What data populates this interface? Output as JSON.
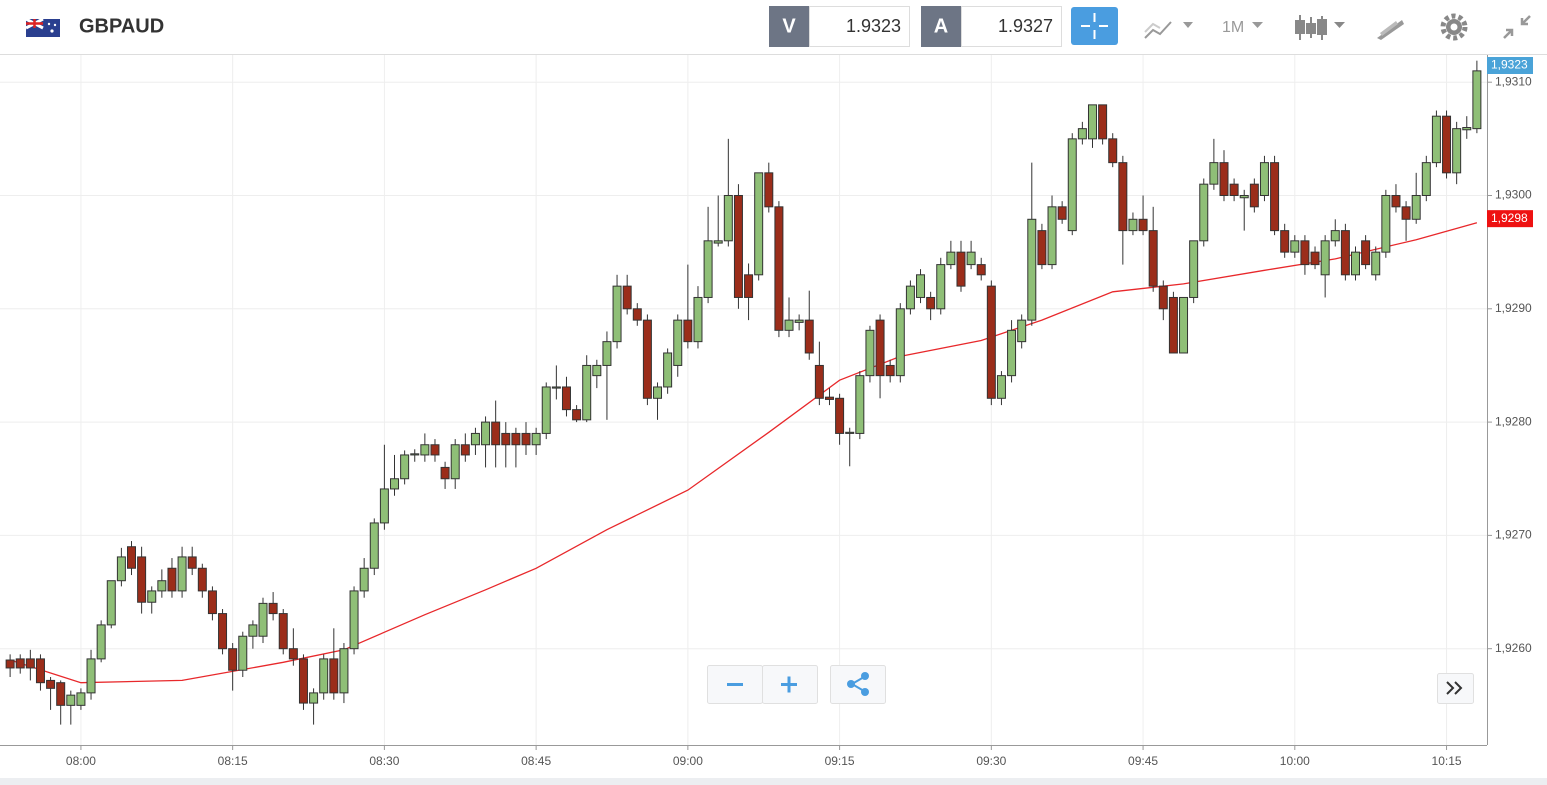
{
  "toolbar": {
    "symbol": "GBPAUD",
    "bid_label": "V",
    "bid": "1.9323",
    "ask_label": "A",
    "ask": "1.9327",
    "timeframe": "1M"
  },
  "chart_data": {
    "type": "candlestick",
    "x": [
      "07:53",
      "07:54",
      "07:55",
      "07:56",
      "07:57",
      "07:58",
      "07:59",
      "08:00",
      "08:01",
      "08:02",
      "08:03",
      "08:04",
      "08:05",
      "08:06",
      "08:07",
      "08:08",
      "08:09",
      "08:10",
      "08:11",
      "08:12",
      "08:13",
      "08:14",
      "08:15",
      "08:16",
      "08:17",
      "08:18",
      "08:19",
      "08:20",
      "08:21",
      "08:22",
      "08:23",
      "08:24",
      "08:25",
      "08:26",
      "08:27",
      "08:28",
      "08:29",
      "08:30",
      "08:31",
      "08:32",
      "08:33",
      "08:34",
      "08:35",
      "08:36",
      "08:37",
      "08:38",
      "08:39",
      "08:40",
      "08:41",
      "08:42",
      "08:43",
      "08:44",
      "08:45",
      "08:46",
      "08:47",
      "08:48",
      "08:49",
      "08:50",
      "08:51",
      "08:52",
      "08:53",
      "08:54",
      "08:55",
      "08:56",
      "08:57",
      "08:58",
      "08:59",
      "09:00",
      "09:01",
      "09:02",
      "09:03",
      "09:04",
      "09:05",
      "09:06",
      "09:07",
      "09:08",
      "09:09",
      "09:10",
      "09:11",
      "09:12",
      "09:13",
      "09:14",
      "09:15",
      "09:16",
      "09:17",
      "09:18",
      "09:19",
      "09:20",
      "09:21",
      "09:22",
      "09:23",
      "09:24",
      "09:25",
      "09:26",
      "09:27",
      "09:28",
      "09:29",
      "09:30",
      "09:31",
      "09:32",
      "09:33",
      "09:34",
      "09:35",
      "09:36",
      "09:37",
      "09:38",
      "09:39",
      "09:40",
      "09:41",
      "09:42",
      "09:43",
      "09:44",
      "09:45",
      "09:46",
      "09:47",
      "09:48",
      "09:49",
      "09:50",
      "09:51",
      "09:52",
      "09:53",
      "09:54",
      "09:55",
      "09:56",
      "09:57",
      "09:58",
      "09:59",
      "10:00",
      "10:01",
      "10:02",
      "10:03",
      "10:04",
      "10:05",
      "10:06",
      "10:07",
      "10:08",
      "10:09",
      "10:10",
      "10:11",
      "10:12",
      "10:13",
      "10:14",
      "10:15",
      "10:16",
      "10:17",
      "10:18"
    ],
    "open": [
      1.9259,
      1.92591,
      1.92591,
      1.92591,
      1.92572,
      1.9257,
      1.9255,
      1.9255,
      1.92561,
      1.92591,
      1.92621,
      1.9266,
      1.9269,
      1.92681,
      1.92641,
      1.92651,
      1.92671,
      1.92651,
      1.92681,
      1.92671,
      1.92651,
      1.92631,
      1.926,
      1.92581,
      1.92611,
      1.92611,
      1.9264,
      1.92631,
      1.926,
      1.92591,
      1.92552,
      1.92561,
      1.92591,
      1.92561,
      1.926,
      1.92651,
      1.92671,
      1.92711,
      1.92741,
      1.9275,
      1.92771,
      1.92771,
      1.9278,
      1.9276,
      1.9275,
      1.9278,
      1.9278,
      1.9278,
      1.928,
      1.9279,
      1.9279,
      1.9279,
      1.9278,
      1.9279,
      1.9283,
      1.92831,
      1.92811,
      1.92802,
      1.92841,
      1.9285,
      1.92871,
      1.9292,
      1.929,
      1.9289,
      1.92821,
      1.92831,
      1.9285,
      1.9289,
      1.92871,
      1.9291,
      1.92958,
      1.9296,
      1.93,
      1.9293,
      1.9293,
      1.9302,
      1.9299,
      1.92881,
      1.92888,
      1.9289,
      1.9285,
      1.92822,
      1.92821,
      1.9279,
      1.9279,
      1.92841,
      1.9289,
      1.9285,
      1.92841,
      1.929,
      1.9291,
      1.9291,
      1.929,
      1.92939,
      1.9295,
      1.92939,
      1.92939,
      1.9292,
      1.92821,
      1.92841,
      1.92871,
      1.9289,
      1.92969,
      1.92939,
      1.9299,
      1.92969,
      1.9305,
      1.9305,
      1.9308,
      1.9305,
      1.93029,
      1.92969,
      1.92979,
      1.92969,
      1.9292,
      1.9291,
      1.92861,
      1.9291,
      1.9296,
      1.9301,
      1.93029,
      1.9301,
      1.92998,
      1.9301,
      1.93,
      1.93029,
      1.92969,
      1.9295,
      1.9296,
      1.9295,
      1.9293,
      1.9296,
      1.92969,
      1.9293,
      1.9296,
      1.9293,
      1.9295,
      1.93,
      1.9299,
      1.92979,
      1.93,
      1.93029,
      1.9307,
      1.9302,
      1.93058,
      1.93059
    ],
    "high": [
      1.92595,
      1.92595,
      1.92599,
      1.92595,
      1.92575,
      1.92572,
      1.92563,
      1.92565,
      1.92599,
      1.92625,
      1.9266,
      1.92689,
      1.92695,
      1.9269,
      1.92655,
      1.9267,
      1.9268,
      1.9269,
      1.9269,
      1.92675,
      1.92655,
      1.92635,
      1.92605,
      1.92615,
      1.92625,
      1.92645,
      1.9265,
      1.92635,
      1.92618,
      1.92595,
      1.92565,
      1.92595,
      1.92618,
      1.92605,
      1.92655,
      1.9268,
      1.92715,
      1.9278,
      1.92771,
      1.92775,
      1.92776,
      1.9279,
      1.92785,
      1.92765,
      1.92785,
      1.9279,
      1.92795,
      1.92805,
      1.92819,
      1.928,
      1.92795,
      1.928,
      1.92795,
      1.92835,
      1.9285,
      1.9284,
      1.92815,
      1.92859,
      1.92855,
      1.9288,
      1.9293,
      1.9293,
      1.92905,
      1.92895,
      1.92835,
      1.92865,
      1.92895,
      1.92939,
      1.9292,
      1.9299,
      1.93,
      1.9305,
      1.9301,
      1.9294,
      1.9302,
      1.93029,
      1.92995,
      1.9291,
      1.92895,
      1.92916,
      1.92871,
      1.9283,
      1.92825,
      1.92795,
      1.92845,
      1.92885,
      1.92895,
      1.92855,
      1.92905,
      1.92925,
      1.92935,
      1.92915,
      1.92945,
      1.9296,
      1.9296,
      1.9296,
      1.92945,
      1.92925,
      1.92845,
      1.9289,
      1.92895,
      1.93029,
      1.92975,
      1.93,
      1.92995,
      1.93055,
      1.93065,
      1.9308,
      1.9308,
      1.93055,
      1.93035,
      1.92985,
      1.93,
      1.9299,
      1.92925,
      1.92915,
      1.9291,
      1.9296,
      1.93015,
      1.9305,
      1.9304,
      1.93015,
      1.93005,
      1.93015,
      1.93035,
      1.93035,
      1.92975,
      1.92965,
      1.92965,
      1.92955,
      1.92965,
      1.92979,
      1.92975,
      1.92955,
      1.92965,
      1.92955,
      1.93005,
      1.9301,
      1.92995,
      1.9302,
      1.93035,
      1.93075,
      1.93075,
      1.93065,
      1.9307,
      1.93119
    ],
    "low": [
      1.92575,
      1.92578,
      1.92572,
      1.92563,
      1.92546,
      1.92533,
      1.92533,
      1.92546,
      1.92555,
      1.92588,
      1.92618,
      1.92655,
      1.92665,
      1.92631,
      1.92631,
      1.92645,
      1.92645,
      1.92645,
      1.92665,
      1.92645,
      1.92625,
      1.92595,
      1.92563,
      1.92575,
      1.926,
      1.92605,
      1.92625,
      1.92595,
      1.92585,
      1.92546,
      1.92533,
      1.92555,
      1.92555,
      1.92552,
      1.92595,
      1.92645,
      1.92665,
      1.92705,
      1.92735,
      1.92745,
      1.92765,
      1.92765,
      1.92765,
      1.92741,
      1.92741,
      1.92765,
      1.92771,
      1.9276,
      1.9276,
      1.9276,
      1.9276,
      1.92771,
      1.92771,
      1.92785,
      1.9282,
      1.92805,
      1.928,
      1.928,
      1.9283,
      1.92802,
      1.92865,
      1.92895,
      1.92885,
      1.92815,
      1.92802,
      1.92825,
      1.9284,
      1.92865,
      1.92865,
      1.92905,
      1.92955,
      1.92955,
      1.929,
      1.9289,
      1.92925,
      1.92985,
      1.92875,
      1.92875,
      1.92881,
      1.92855,
      1.92815,
      1.92815,
      1.9278,
      1.92761,
      1.92785,
      1.92835,
      1.92821,
      1.92835,
      1.92835,
      1.92895,
      1.92905,
      1.9289,
      1.92895,
      1.92935,
      1.92915,
      1.92935,
      1.92925,
      1.92815,
      1.92815,
      1.92835,
      1.92865,
      1.92885,
      1.92935,
      1.92935,
      1.92975,
      1.92965,
      1.93045,
      1.93042,
      1.93045,
      1.93025,
      1.92939,
      1.92965,
      1.92965,
      1.92915,
      1.9289,
      1.92861,
      1.92861,
      1.92905,
      1.92955,
      1.93005,
      1.92995,
      1.92995,
      1.92969,
      1.92985,
      1.92995,
      1.92965,
      1.92945,
      1.92945,
      1.9293,
      1.92935,
      1.9291,
      1.92955,
      1.92925,
      1.92925,
      1.92935,
      1.92925,
      1.92945,
      1.92985,
      1.9296,
      1.92975,
      1.92995,
      1.93025,
      1.93015,
      1.9301,
      1.9305,
      1.93055
    ],
    "close": [
      1.92583,
      1.92583,
      1.92583,
      1.9257,
      1.92565,
      1.9255,
      1.92559,
      1.92561,
      1.92591,
      1.92621,
      1.9266,
      1.92681,
      1.92671,
      1.92641,
      1.92651,
      1.9266,
      1.92651,
      1.92681,
      1.92671,
      1.92651,
      1.92631,
      1.926,
      1.92581,
      1.92611,
      1.92621,
      1.9264,
      1.92631,
      1.926,
      1.92591,
      1.92552,
      1.92561,
      1.92591,
      1.92561,
      1.926,
      1.92651,
      1.92671,
      1.92711,
      1.92741,
      1.9275,
      1.92771,
      1.92772,
      1.9278,
      1.92771,
      1.9275,
      1.9278,
      1.92771,
      1.9279,
      1.928,
      1.9278,
      1.9278,
      1.9278,
      1.9278,
      1.9279,
      1.92831,
      1.92831,
      1.92811,
      1.92802,
      1.9285,
      1.9285,
      1.92871,
      1.9292,
      1.929,
      1.9289,
      1.92821,
      1.92831,
      1.92861,
      1.9289,
      1.92871,
      1.9291,
      1.9296,
      1.9296,
      1.93,
      1.9291,
      1.9291,
      1.9302,
      1.9299,
      1.92881,
      1.9289,
      1.9289,
      1.92861,
      1.92821,
      1.9282,
      1.9279,
      1.92791,
      1.92841,
      1.92881,
      1.92841,
      1.92841,
      1.929,
      1.9292,
      1.9293,
      1.929,
      1.92939,
      1.9295,
      1.9292,
      1.9295,
      1.9293,
      1.92821,
      1.92841,
      1.92881,
      1.9289,
      1.92979,
      1.92939,
      1.9299,
      1.92979,
      1.9305,
      1.93059,
      1.9308,
      1.9305,
      1.93029,
      1.92969,
      1.92979,
      1.92969,
      1.9292,
      1.929,
      1.92861,
      1.9291,
      1.9296,
      1.9301,
      1.93029,
      1.93,
      1.93,
      1.93,
      1.9299,
      1.93029,
      1.92969,
      1.9295,
      1.9296,
      1.92939,
      1.92939,
      1.9296,
      1.92969,
      1.9293,
      1.9295,
      1.92939,
      1.9295,
      1.93,
      1.9299,
      1.92979,
      1.93,
      1.93029,
      1.9307,
      1.9302,
      1.93059,
      1.9306,
      1.9311
    ],
    "up_color": "#8fbf77",
    "down_color": "#9b2d1a",
    "wick_color": "#333333",
    "overlay": {
      "color": "#e8282b",
      "x": [
        "07:53",
        "08:00",
        "08:10",
        "08:20",
        "08:26",
        "08:34",
        "08:40",
        "08:45",
        "08:52",
        "09:00",
        "09:08",
        "09:15",
        "09:21",
        "09:29",
        "09:35",
        "09:42",
        "09:49",
        "09:57",
        "10:04",
        "10:12",
        "10:18"
      ],
      "values": [
        1.9259,
        1.9257,
        1.92572,
        1.92588,
        1.92599,
        1.9263,
        1.92652,
        1.92671,
        1.92705,
        1.9274,
        1.92791,
        1.92837,
        1.92858,
        1.92872,
        1.9289,
        1.92915,
        1.92922,
        1.92934,
        1.92944,
        1.92961,
        1.92976
      ]
    },
    "last_price": {
      "value": 1.9323,
      "label": "1,9323",
      "color": "#4aa3d8"
    },
    "overlay_price": {
      "value": 1.9298,
      "label": "1,9298",
      "color": "#ee1111"
    },
    "xlim": [
      "07:52",
      "10:19"
    ],
    "xticks": [
      "08:00",
      "08:15",
      "08:30",
      "08:45",
      "09:00",
      "09:15",
      "09:30",
      "09:45",
      "10:00",
      "10:15"
    ],
    "ylim": [
      1.92515,
      1.93124
    ],
    "yticks": [
      {
        "value": 1.926,
        "label": "1,9260"
      },
      {
        "value": 1.927,
        "label": "1,9270"
      },
      {
        "value": 1.928,
        "label": "1,9280"
      },
      {
        "value": 1.929,
        "label": "1,9290"
      },
      {
        "value": 1.93,
        "label": "1,9300"
      },
      {
        "value": 1.931,
        "label": "1,9310"
      }
    ],
    "grid": true
  }
}
